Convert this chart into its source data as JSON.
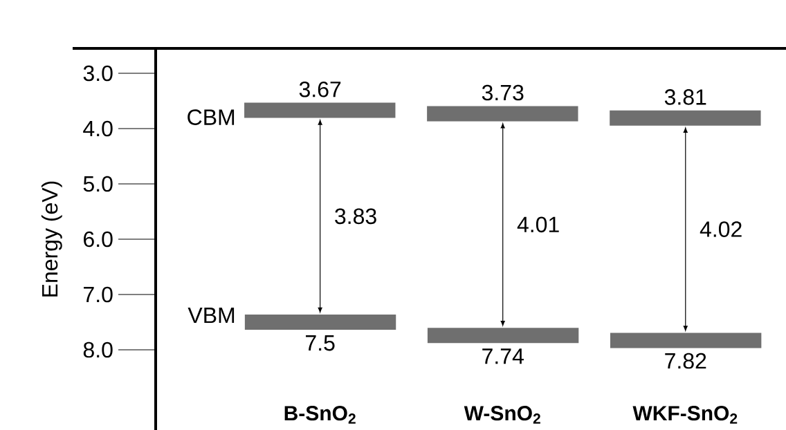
{
  "chart_data": {
    "type": "bar",
    "ylabel": "Energy (eV)",
    "categories": [
      "B-SnO$_{2}$",
      "W-SnO$_{2}$",
      "WKF-SnO$_{2}$"
    ],
    "base": [
      3.67,
      3.73,
      3.81
    ],
    "values": [
      3.83,
      4.01,
      4.02
    ],
    "color": "#6f6f6f",
    "data_labels": true,
    "ylim": [
      9.45,
      2.55
    ],
    "yticks": [
      {
        "value": 3,
        "label": "3.0"
      },
      {
        "value": 4,
        "label": "4.0"
      },
      {
        "value": 5,
        "label": "5.0"
      },
      {
        "value": 6,
        "label": "6.0"
      },
      {
        "value": 7,
        "label": "7.0"
      },
      {
        "value": 8,
        "label": "8.0"
      }
    ],
    "annotations": [
      "CBM",
      "VBM",
      {
        "text": "3.67",
        "x": "B-SnO$_{2}$",
        "y": 3.67
      },
      {
        "text": "3.73",
        "x": "W-SnO$_{2}$",
        "y": 3.73
      },
      {
        "text": "3.81",
        "x": "WKF-SnO$_{2}$",
        "y": 3.81
      },
      {
        "text": "7.5",
        "x": "B-SnO$_{2}$",
        "y": 7.5
      },
      {
        "text": "7.74",
        "x": "W-SnO$_{2}$",
        "y": 7.74
      },
      {
        "text": "7.82",
        "x": "WKF-SnO$_{2}$",
        "y": 7.82
      }
    ],
    "grid": false
  }
}
